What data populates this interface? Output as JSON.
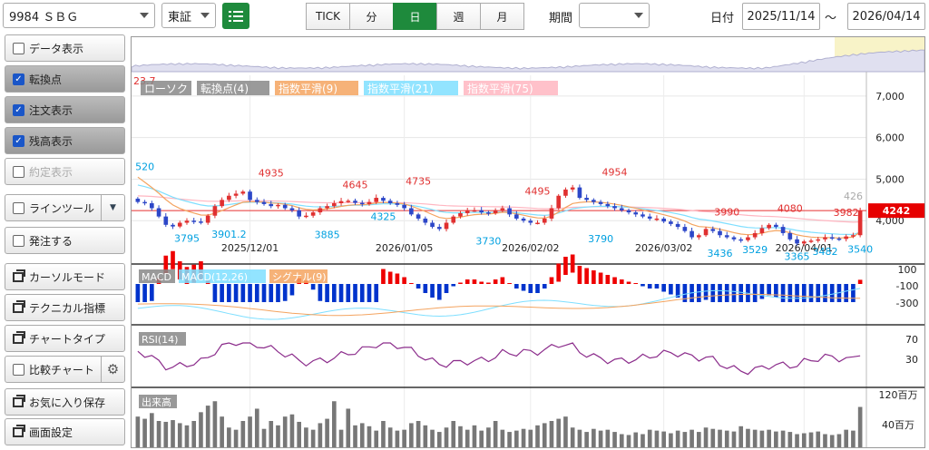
{
  "toolbar": {
    "symbol": "9984 ＳＢＧ",
    "market": "東証",
    "periods": [
      "TICK",
      "分",
      "日",
      "週",
      "月"
    ],
    "active_period": "日",
    "range_label": "期間",
    "range_value": "",
    "date_label": "日付",
    "date_from": "2025/11/14",
    "date_sep": "～",
    "date_to": "2026/04/14"
  },
  "sidebar": {
    "items": [
      {
        "label": "データ表示",
        "type": "checkbox",
        "checked": false,
        "state": "normal"
      },
      {
        "label": "転換点",
        "type": "checkbox",
        "checked": true,
        "state": "on"
      },
      {
        "label": "注文表示",
        "type": "checkbox",
        "checked": true,
        "state": "on"
      },
      {
        "label": "残高表示",
        "type": "checkbox",
        "checked": true,
        "state": "on"
      },
      {
        "label": "約定表示",
        "type": "checkbox",
        "checked": false,
        "state": "disabled"
      },
      {
        "label": "ラインツール",
        "type": "checkbox-dropdown",
        "checked": false,
        "state": "normal"
      },
      {
        "label": "発注する",
        "type": "checkbox",
        "checked": false,
        "state": "normal"
      },
      {
        "label": "カーソルモード",
        "type": "window",
        "state": "normal"
      },
      {
        "label": "テクニカル指標",
        "type": "window",
        "state": "normal"
      },
      {
        "label": "チャートタイプ",
        "type": "window",
        "state": "normal"
      },
      {
        "label": "比較チャート",
        "type": "checkbox-gear",
        "checked": false,
        "state": "normal"
      },
      {
        "label": "お気に入り保存",
        "type": "window",
        "state": "normal"
      },
      {
        "label": "画面設定",
        "type": "window",
        "state": "normal"
      }
    ]
  },
  "chart": {
    "corner_value": "23.7",
    "legends": [
      {
        "label": "ローソク",
        "color": "#888888"
      },
      {
        "label": "転換点(4)",
        "color": "#888888"
      },
      {
        "label": "指数平滑(9)",
        "color": "#f4a460"
      },
      {
        "label": "指数平滑(21)",
        "color": "#7fdfff"
      },
      {
        "label": "指数平滑(75)",
        "color": "#ffb6c1"
      }
    ],
    "y_ticks": [
      "7,000",
      "6,000",
      "5,000",
      "4,000"
    ],
    "current_price": "4242",
    "last_marker": "426",
    "x_labels": [
      "2025/12/01",
      "2026/01/05",
      "2026/02/02",
      "2026/03/02",
      "2026/04/01"
    ],
    "turning_highs": [
      "4935",
      "4645",
      "4735",
      "4495",
      "4954",
      "3990",
      "4080",
      "3982"
    ],
    "turning_lows": [
      "520",
      "3795",
      "3901.2",
      "3885",
      "4325",
      "3730",
      "3790",
      "3436",
      "3529",
      "3365",
      "3482",
      "3540"
    ],
    "macd": {
      "legends": [
        {
          "label": "MACD",
          "color": "#888888"
        },
        {
          "label": "MACD(12,26)",
          "color": "#7fdfff"
        },
        {
          "label": "シグナル(9)",
          "color": "#f4a460"
        }
      ],
      "ticks": [
        "100",
        "-100",
        "-300"
      ]
    },
    "rsi": {
      "legend": "RSI(14)",
      "ticks": [
        "70",
        "30"
      ]
    },
    "volume": {
      "legend": "出来高",
      "ticks": [
        "120百万",
        "40百万"
      ]
    }
  },
  "chart_data": {
    "type": "candlestick",
    "closes": [
      4450,
      4420,
      4300,
      4100,
      3900,
      3860,
      3950,
      4000,
      3980,
      3950,
      4120,
      4350,
      4500,
      4600,
      4650,
      4700,
      4500,
      4450,
      4400,
      4350,
      4380,
      4300,
      4250,
      4100,
      4120,
      4200,
      4300,
      4350,
      4420,
      4470,
      4480,
      4430,
      4400,
      4450,
      4550,
      4480,
      4420,
      4380,
      4300,
      4150,
      4050,
      3950,
      3850,
      3800,
      3950,
      4100,
      4180,
      4250,
      4250,
      4200,
      4180,
      4250,
      4300,
      4150,
      4050,
      4000,
      3950,
      3950,
      4050,
      4300,
      4600,
      4750,
      4800,
      4550,
      4500,
      4450,
      4400,
      4350,
      4300,
      4250,
      4200,
      4150,
      4100,
      4050,
      4050,
      3980,
      3920,
      3850,
      3750,
      3600,
      3650,
      3800,
      3750,
      3650,
      3600,
      3550,
      3530,
      3600,
      3700,
      3820,
      3900,
      3850,
      3700,
      3550,
      3450,
      3500,
      3520,
      3550,
      3600,
      3570,
      3560,
      3620,
      3650,
      4242
    ],
    "volume": [
      70,
      65,
      78,
      60,
      58,
      62,
      55,
      50,
      60,
      80,
      95,
      105,
      70,
      45,
      40,
      60,
      70,
      88,
      42,
      60,
      50,
      70,
      75,
      58,
      45,
      40,
      55,
      65,
      105,
      40,
      88,
      50,
      55,
      48,
      38,
      60,
      45,
      38,
      40,
      55,
      60,
      50,
      40,
      35,
      45,
      60,
      48,
      40,
      50,
      38,
      45,
      60,
      40,
      35,
      38,
      42,
      40,
      50,
      55,
      60,
      65,
      70,
      45,
      40,
      35,
      42,
      38,
      40,
      35,
      30,
      28,
      34,
      30,
      40,
      38,
      36,
      32,
      38,
      35,
      40,
      35,
      45,
      42,
      40,
      38,
      36,
      48,
      42,
      40,
      38,
      40,
      36,
      38,
      35,
      30,
      32,
      34,
      36,
      30,
      28,
      30,
      40,
      38,
      92
    ],
    "xlabels": [
      "2025/12/01",
      "2026/01/05",
      "2026/02/02",
      "2026/03/02",
      "2026/04/01"
    ],
    "ylim": [
      3000,
      7500
    ]
  }
}
